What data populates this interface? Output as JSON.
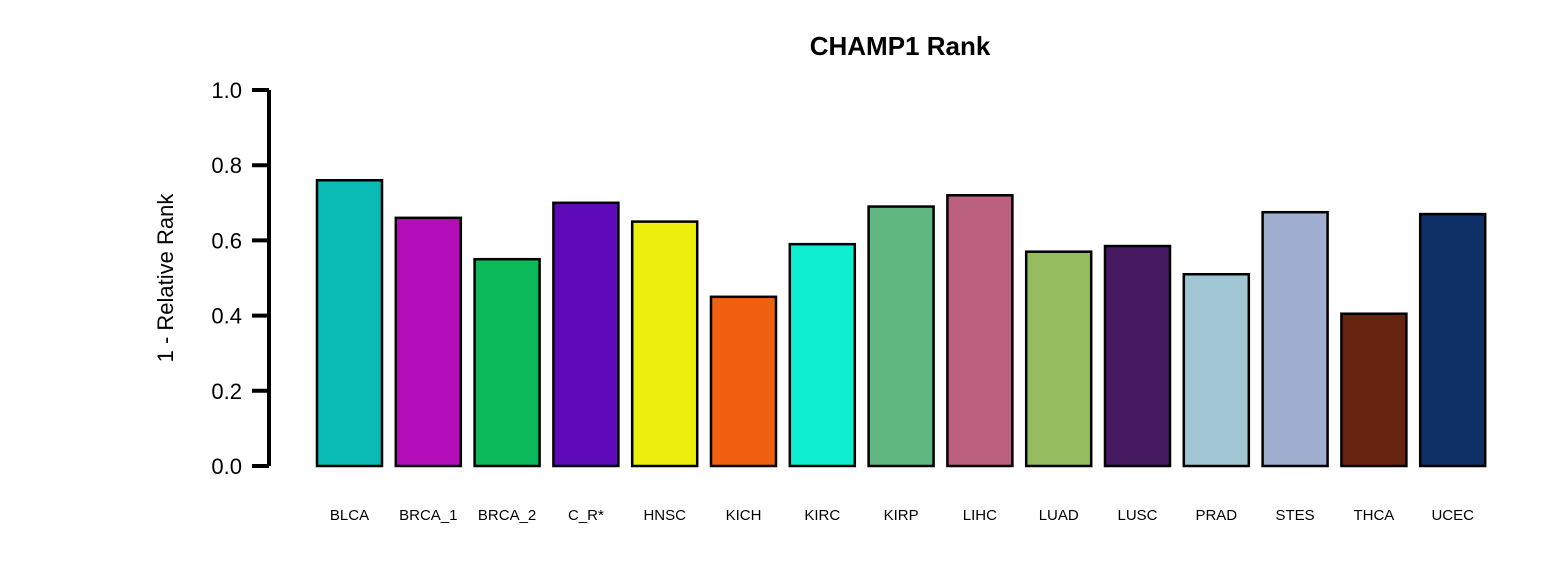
{
  "chart_data": {
    "type": "bar",
    "title": "CHAMP1 Rank",
    "xlabel": "",
    "ylabel": "1 - Relative Rank",
    "ylim": [
      0,
      1
    ],
    "yticks": [
      "0.0",
      "0.2",
      "0.4",
      "0.6",
      "0.8",
      "1.0"
    ],
    "grid": false,
    "categories": [
      "BLCA",
      "BRCA_1",
      "BRCA_2",
      "C_R*",
      "HNSC",
      "KICH",
      "KIRC",
      "KIRP",
      "LIHC",
      "LUAD",
      "LUSC",
      "PRAD",
      "STES",
      "THCA",
      "UCEC"
    ],
    "values": [
      0.76,
      0.66,
      0.55,
      0.7,
      0.65,
      0.45,
      0.59,
      0.69,
      0.72,
      0.57,
      0.585,
      0.51,
      0.675,
      0.405,
      0.67
    ],
    "colors": [
      "#0ABAB5",
      "#B40DBA",
      "#0BB85A",
      "#5E0AB8",
      "#EEEE0E",
      "#F06010",
      "#10EED2",
      "#60B880",
      "#BC6080",
      "#96BC60",
      "#461A60",
      "#A0C6D4",
      "#A0AED0",
      "#682410",
      "#0E3066"
    ]
  }
}
